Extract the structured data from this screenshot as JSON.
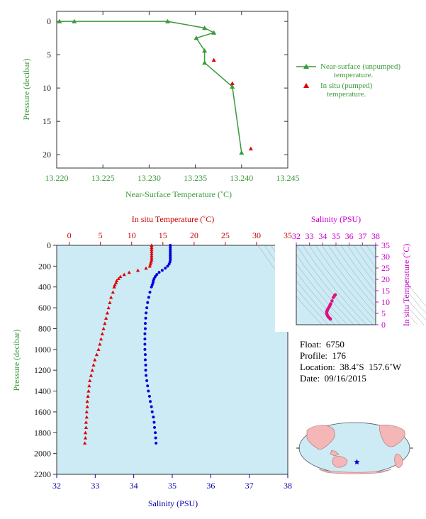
{
  "chart_data": [
    {
      "type": "line",
      "name": "near-surface",
      "xlabel": "Near-Surface Temperature (˚C)",
      "ylabel": "Pressure (decibar)",
      "xlim": [
        13.22,
        13.245
      ],
      "ylim": [
        22,
        -1.5
      ],
      "xticks": [
        "13.220",
        "13.225",
        "13.230",
        "13.235",
        "13.240",
        "13.245"
      ],
      "yticks": [
        0,
        5,
        10,
        15,
        20
      ],
      "series": [
        {
          "name": "Near-surface (unpumped) temperature.",
          "marker": "triangle-line",
          "color": "#3a9a3a",
          "x": [
            13.2203,
            13.2219,
            13.232,
            13.236,
            13.237,
            13.2351,
            13.236,
            13.236,
            13.239,
            13.24
          ],
          "y": [
            0.0,
            0.0,
            0.0,
            1.0,
            1.7,
            2.5,
            4.4,
            6.2,
            9.8,
            19.7
          ]
        },
        {
          "name": "In situ (pumped) temperature.",
          "marker": "triangle",
          "color": "#dd0000",
          "x": [
            13.237,
            13.239,
            13.241
          ],
          "y": [
            5.8,
            9.3,
            19.1
          ]
        }
      ],
      "legend_placement": "right"
    },
    {
      "type": "scatter",
      "name": "profile",
      "ylabel": "Pressure (decibar)",
      "top_xlabel": "In situ Temperature (˚C)",
      "bottom_xlabel": "Salinity (PSU)",
      "temp_xlim": [
        -2,
        35
      ],
      "sal_xlim": [
        32,
        38
      ],
      "ylim": [
        2200,
        0
      ],
      "temp_ticks": [
        0,
        5,
        10,
        15,
        20,
        25,
        30,
        35
      ],
      "sal_ticks": [
        32,
        33,
        34,
        35,
        36,
        37,
        38
      ],
      "yticks": [
        0,
        200,
        400,
        600,
        800,
        1000,
        1200,
        1400,
        1600,
        1800,
        2000,
        2200
      ],
      "temperature": {
        "color": "#dd0000",
        "p": [
          0,
          20,
          40,
          60,
          80,
          100,
          120,
          140,
          160,
          180,
          200,
          220,
          240,
          260,
          280,
          300,
          320,
          340,
          360,
          380,
          400,
          450,
          500,
          550,
          600,
          650,
          700,
          750,
          800,
          850,
          900,
          950,
          1000,
          1050,
          1100,
          1150,
          1200,
          1250,
          1300,
          1350,
          1400,
          1450,
          1500,
          1550,
          1600,
          1650,
          1700,
          1750,
          1800,
          1850,
          1900
        ],
        "t": [
          13.2,
          13.2,
          13.2,
          13.2,
          13.2,
          13.2,
          13.2,
          13.2,
          13.1,
          13.0,
          12.9,
          12.3,
          11.0,
          9.6,
          8.8,
          8.2,
          7.9,
          7.6,
          7.5,
          7.3,
          7.2,
          7.0,
          6.7,
          6.5,
          6.3,
          6.1,
          5.9,
          5.7,
          5.5,
          5.3,
          5.1,
          4.9,
          4.7,
          4.4,
          4.1,
          3.9,
          3.7,
          3.5,
          3.3,
          3.2,
          3.1,
          3.0,
          2.9,
          2.9,
          2.8,
          2.8,
          2.7,
          2.7,
          2.6,
          2.6,
          2.5
        ]
      },
      "salinity": {
        "color": "#0000dd",
        "p": [
          0,
          20,
          40,
          60,
          80,
          100,
          120,
          140,
          160,
          180,
          200,
          220,
          240,
          260,
          280,
          300,
          320,
          340,
          360,
          380,
          400,
          450,
          500,
          550,
          600,
          650,
          700,
          750,
          800,
          850,
          900,
          950,
          1000,
          1050,
          1100,
          1150,
          1200,
          1250,
          1300,
          1350,
          1400,
          1450,
          1500,
          1550,
          1600,
          1650,
          1700,
          1750,
          1800,
          1850,
          1900
        ],
        "s": [
          34.95,
          34.95,
          34.95,
          34.95,
          34.95,
          34.95,
          34.95,
          34.95,
          34.94,
          34.92,
          34.88,
          34.82,
          34.74,
          34.66,
          34.6,
          34.56,
          34.53,
          34.51,
          34.5,
          34.48,
          34.46,
          34.42,
          34.39,
          34.36,
          34.34,
          34.32,
          34.31,
          34.3,
          34.3,
          34.29,
          34.29,
          34.29,
          34.29,
          34.3,
          34.3,
          34.31,
          34.31,
          34.32,
          34.34,
          34.36,
          34.38,
          34.41,
          34.43,
          34.46,
          34.48,
          34.51,
          34.53,
          34.54,
          34.56,
          34.57,
          34.58
        ]
      }
    },
    {
      "type": "scatter",
      "name": "ts-diagram",
      "xlabel": "Salinity (PSU)",
      "ylabel": "In situ Temperature (˚C)",
      "xlim": [
        32,
        38
      ],
      "ylim": [
        0,
        35
      ],
      "xticks": [
        32,
        33,
        34,
        35,
        36,
        37,
        38
      ],
      "yticks": [
        0,
        5,
        10,
        15,
        20,
        25,
        30,
        35
      ],
      "color": "#e01080",
      "s": [
        34.95,
        34.9,
        34.8,
        34.7,
        34.6,
        34.55,
        34.5,
        34.45,
        34.4,
        34.35,
        34.32,
        34.3,
        34.3,
        34.32,
        34.36,
        34.42,
        34.48,
        34.54,
        34.58
      ],
      "t": [
        13.2,
        12.9,
        12.0,
        10.5,
        9.2,
        8.6,
        8.0,
        7.5,
        7.0,
        6.5,
        6.1,
        5.7,
        5.1,
        4.6,
        4.0,
        3.5,
        3.1,
        2.8,
        2.5
      ]
    }
  ],
  "info": {
    "float": "Float:  6750",
    "profile": "Profile:  176",
    "location": "Location:  38.4˚S  157.6˚W",
    "date": "Date:  09/16/2015"
  },
  "colors": {
    "panel_bg": "#cdebf5",
    "land": "#f4b6b6",
    "ocean": "#cdebf5",
    "near_surface": "#3a9a3a",
    "temperature": "#dd0000",
    "salinity": "#0000dd",
    "ts": "#e01080"
  }
}
